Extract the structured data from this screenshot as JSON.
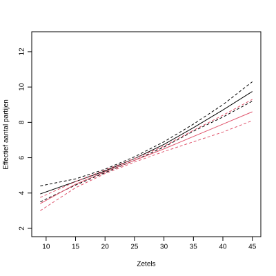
{
  "chart_data": {
    "type": "line",
    "xlabel": "Zetels",
    "ylabel": "Effectief aantal partijen",
    "x": [
      9,
      15,
      20,
      25,
      30,
      35,
      40,
      45
    ],
    "series": [
      {
        "color": "#000000",
        "dash": false,
        "values": [
          3.95,
          4.65,
          5.25,
          5.95,
          6.75,
          7.7,
          8.7,
          9.75
        ]
      },
      {
        "color": "#000000",
        "dash": true,
        "values": [
          4.4,
          4.8,
          5.35,
          6.05,
          6.9,
          7.9,
          9.0,
          10.3
        ]
      },
      {
        "color": "#000000",
        "dash": true,
        "values": [
          3.5,
          4.45,
          5.15,
          5.85,
          6.6,
          7.5,
          8.3,
          9.2
        ]
      },
      {
        "color": "#df536b",
        "dash": false,
        "values": [
          3.4,
          4.5,
          5.2,
          5.85,
          6.5,
          7.2,
          7.9,
          8.6
        ]
      },
      {
        "color": "#df536b",
        "dash": true,
        "values": [
          3.75,
          4.65,
          5.3,
          5.95,
          6.65,
          7.55,
          8.4,
          9.3
        ]
      },
      {
        "color": "#df536b",
        "dash": true,
        "values": [
          3.0,
          4.3,
          5.1,
          5.75,
          6.35,
          6.9,
          7.45,
          8.1
        ]
      }
    ],
    "xlim": [
      7.56,
      46.44
    ],
    "ylim": [
      1.53,
      13.13
    ],
    "xticks": [
      10,
      15,
      20,
      25,
      30,
      35,
      40,
      45
    ],
    "yticks": [
      2,
      4,
      6,
      8,
      10,
      12
    ]
  }
}
